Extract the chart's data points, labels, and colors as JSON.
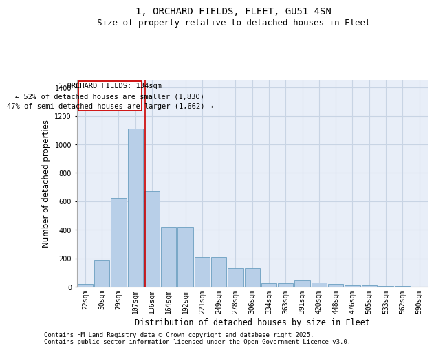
{
  "title1": "1, ORCHARD FIELDS, FLEET, GU51 4SN",
  "title2": "Size of property relative to detached houses in Fleet",
  "xlabel": "Distribution of detached houses by size in Fleet",
  "ylabel": "Number of detached properties",
  "categories": [
    "22sqm",
    "50sqm",
    "79sqm",
    "107sqm",
    "136sqm",
    "164sqm",
    "192sqm",
    "221sqm",
    "249sqm",
    "278sqm",
    "306sqm",
    "334sqm",
    "363sqm",
    "391sqm",
    "420sqm",
    "448sqm",
    "476sqm",
    "505sqm",
    "533sqm",
    "562sqm",
    "590sqm"
  ],
  "values": [
    20,
    190,
    625,
    1110,
    670,
    420,
    420,
    210,
    210,
    130,
    130,
    25,
    25,
    50,
    30,
    20,
    10,
    8,
    5,
    3,
    2
  ],
  "bar_color": "#b8cfe8",
  "bar_edge_color": "#6a9ec0",
  "annotation_text": "1 ORCHARD FIELDS: 134sqm\n← 52% of detached houses are smaller (1,830)\n47% of semi-detached houses are larger (1,662) →",
  "vline_color": "#cc0000",
  "annotation_box_color": "#cc0000",
  "grid_color": "#c8d4e4",
  "bg_color": "#e8eef8",
  "footer1": "Contains HM Land Registry data © Crown copyright and database right 2025.",
  "footer2": "Contains public sector information licensed under the Open Government Licence v3.0.",
  "ylim": [
    0,
    1450
  ],
  "yticks": [
    0,
    200,
    400,
    600,
    800,
    1000,
    1200,
    1400
  ],
  "title_fontsize": 10,
  "subtitle_fontsize": 9,
  "axis_label_fontsize": 8.5,
  "tick_fontsize": 7,
  "annotation_fontsize": 7.5,
  "footer_fontsize": 6.5
}
